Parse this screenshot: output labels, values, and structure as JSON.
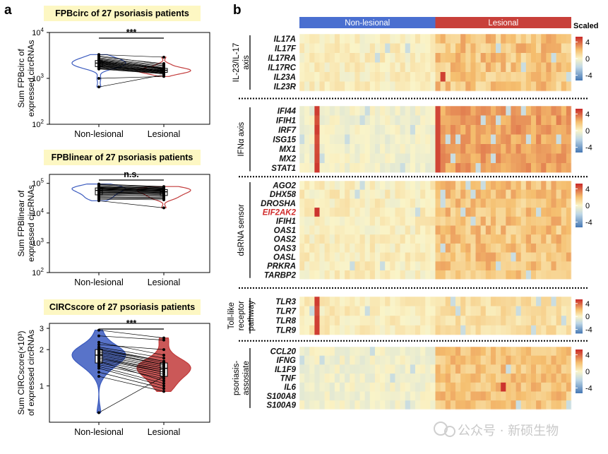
{
  "panel_a": {
    "letter": "a",
    "xticks": [
      "Non-lesional",
      "Lesional"
    ],
    "plots": [
      {
        "title": "FPBcirc of 27 psoriasis patients",
        "ylabel": [
          "Sum FPBcirc of",
          "expressed circRNAs"
        ],
        "significance": "***",
        "scale": "log10",
        "yticks": [
          {
            "exp": 2
          },
          {
            "exp": 3
          },
          {
            "exp": 4
          }
        ],
        "ylim": [
          100,
          10000
        ],
        "colors": {
          "nonlesional": "#3b5bbf",
          "lesional": "#c23b3b"
        },
        "filled": false,
        "nonlesional": [
          2200,
          2600,
          1900,
          3100,
          2400,
          1800,
          2000,
          2800,
          1700,
          2300,
          1600,
          2100,
          2500,
          1950,
          2700,
          1850,
          2050,
          2950,
          1750,
          2250,
          2350,
          1650,
          2150,
          650,
          1000,
          2450,
          3300
        ],
        "lesional": [
          1500,
          1700,
          1400,
          2000,
          1550,
          1350,
          1450,
          1900,
          1300,
          1600,
          1250,
          1480,
          1650,
          1420,
          1800,
          1380,
          1520,
          2100,
          1320,
          1580,
          1620,
          1280,
          1460,
          1200,
          1100,
          1680,
          2900
        ]
      },
      {
        "title": "FPBlinear of 27 psoriasis patients",
        "ylabel": [
          "Sum FPBlinear of",
          "expressed circRNAs"
        ],
        "significance": "n.s.",
        "scale": "log10",
        "yticks": [
          {
            "exp": 2
          },
          {
            "exp": 3
          },
          {
            "exp": 4
          },
          {
            "exp": 5
          }
        ],
        "ylim": [
          100,
          200000
        ],
        "colors": {
          "nonlesional": "#3b5bbf",
          "lesional": "#c23b3b"
        },
        "filled": false,
        "nonlesional": [
          55000,
          72000,
          48000,
          88000,
          62000,
          41000,
          52000,
          80000,
          38000,
          66000,
          35000,
          58000,
          70000,
          46000,
          77000,
          43000,
          60000,
          90000,
          31000,
          64000,
          68000,
          29000,
          50000,
          26000,
          33000,
          74000,
          95000
        ],
        "lesional": [
          50000,
          62000,
          44000,
          75000,
          56000,
          40000,
          48000,
          70000,
          36000,
          58000,
          33000,
          52000,
          64000,
          42000,
          68000,
          39000,
          54000,
          72000,
          30000,
          57000,
          60000,
          28000,
          46000,
          15000,
          32000,
          66000,
          78000
        ]
      },
      {
        "title": "CIRCscore of 27 psoriasis patients",
        "ylabel": [
          "Sum CIRCscore(×10³)",
          "of expressed circRNAs"
        ],
        "significance": "***",
        "scale": "log",
        "yticks": [
          {
            "label": "1",
            "value": 1
          },
          {
            "label": "2",
            "value": 2
          },
          {
            "label": "3",
            "value": 3
          }
        ],
        "ylim": [
          0.5,
          3.3
        ],
        "colors": {
          "nonlesional": "#3b5bbf",
          "lesional": "#c23b3b"
        },
        "filled": true,
        "nonlesional": [
          1.8,
          2.0,
          1.7,
          2.6,
          1.9,
          1.6,
          1.75,
          2.3,
          1.55,
          1.85,
          1.5,
          1.95,
          2.1,
          1.65,
          2.2,
          1.6,
          1.8,
          2.9,
          1.45,
          1.9,
          2.0,
          1.4,
          1.7,
          1.3,
          1.2,
          2.05,
          0.6
        ],
        "lesional": [
          1.4,
          1.6,
          1.3,
          2.4,
          1.5,
          1.25,
          1.35,
          1.8,
          1.2,
          1.45,
          1.15,
          1.5,
          1.7,
          1.3,
          2.0,
          1.1,
          1.4,
          2.5,
          1.05,
          1.5,
          1.55,
          1.0,
          1.35,
          0.95,
          0.9,
          1.6,
          1.2
        ]
      }
    ]
  },
  "panel_b": {
    "letter": "b",
    "group_labels": [
      "Non-lesional",
      "Lesional"
    ],
    "group_colors": [
      "#4a6fd0",
      "#c8403a"
    ],
    "legend_title": "Scaled",
    "legend_ticks": [
      "4",
      "0",
      "-4"
    ],
    "sections": [
      {
        "label": [
          "IL-23/IL-17",
          "axis"
        ],
        "genes": [
          "IL17A",
          "IL17F",
          "IL17RA",
          "IL17RC",
          "IL23A",
          "IL23R"
        ]
      },
      {
        "label": [
          "IFNα axis"
        ],
        "genes": [
          "IFI44",
          "IFIH1",
          "IRF7",
          "ISG15",
          "MX1",
          "MX2",
          "STAT1"
        ]
      },
      {
        "label": [
          "dsRNA sensor"
        ],
        "genes": [
          "AGO2",
          "DHX58",
          "DROSHA",
          "EIF2AK2",
          "IFIH1",
          "OAS1",
          "OAS2",
          "OAS3",
          "OASL",
          "PRKRA",
          "TARBP2"
        ],
        "highlight": "EIF2AK2",
        "highlight_color": "#d12a2a"
      },
      {
        "label": [
          "Toll-like",
          "receptor",
          "pathway"
        ],
        "genes": [
          "TLR3",
          "TLR7",
          "TLR8",
          "TLR9"
        ]
      },
      {
        "label": [
          "psoriasis-",
          "assosiate"
        ],
        "genes": [
          "CCL20",
          "IFNG",
          "IL1F9",
          "TNF",
          "IL6",
          "S100A8",
          "S100A9"
        ]
      }
    ]
  },
  "watermark": "公众号 · 新硕生物",
  "chart_data": [
    {
      "type": "violin",
      "title": "FPBcirc of 27 psoriasis patients",
      "categories": [
        "Non-lesional",
        "Lesional"
      ],
      "ylabel": "Sum FPBcirc of expressed circRNAs",
      "yscale": "log10",
      "ylim": [
        100,
        10000
      ],
      "annotation": "***"
    },
    {
      "type": "violin",
      "title": "FPBlinear of 27 psoriasis patients",
      "categories": [
        "Non-lesional",
        "Lesional"
      ],
      "ylabel": "Sum FPBlinear of expressed circRNAs",
      "yscale": "log10",
      "ylim": [
        100,
        200000
      ],
      "annotation": "n.s."
    },
    {
      "type": "violin",
      "title": "CIRCscore of 27 psoriasis patients",
      "categories": [
        "Non-lesional",
        "Lesional"
      ],
      "ylabel": "Sum CIRCscore(×10³) of expressed circRNAs",
      "yscale": "log",
      "ylim": [
        0.5,
        3.3
      ],
      "annotation": "***"
    },
    {
      "type": "heatmap",
      "groups": [
        "Non-lesional",
        "Lesional"
      ],
      "samples_per_group": 27,
      "legend_title": "Scaled",
      "color_range": [
        -4,
        4
      ]
    }
  ]
}
